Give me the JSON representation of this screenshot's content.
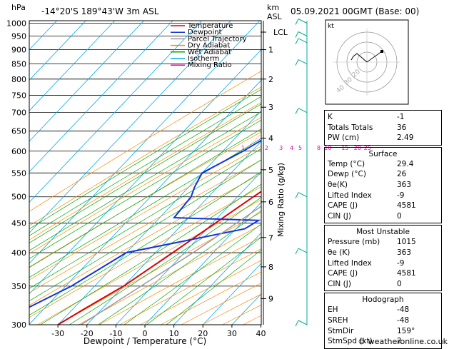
{
  "header": {
    "hpa_label": "hPa",
    "location": "-14°20'S  189°43'W  3m  ASL",
    "km_label": "km",
    "asl_label": "ASL",
    "datetime": "05.09.2021  00GMT  (Base: 00)"
  },
  "chart_data": {
    "type": "line",
    "title": "",
    "xlabel": "Dewpoint / Temperature (°C)",
    "ylabel": "hPa",
    "y_scale": "log",
    "ylim": [
      1010,
      300
    ],
    "xlim": [
      -40,
      40
    ],
    "x_ticks": [
      "-30",
      "-20",
      "-10",
      "0",
      "10",
      "20",
      "30",
      "40"
    ],
    "pressure_levels": [
      "300",
      "350",
      "400",
      "450",
      "500",
      "550",
      "600",
      "650",
      "700",
      "750",
      "800",
      "850",
      "900",
      "950",
      "1000"
    ],
    "km_ticks": [
      {
        "label": "9",
        "p": 333
      },
      {
        "label": "8",
        "p": 378
      },
      {
        "label": "7",
        "p": 425
      },
      {
        "label": "6",
        "p": 490
      },
      {
        "label": "5",
        "p": 557
      },
      {
        "label": "4",
        "p": 632
      },
      {
        "label": "3",
        "p": 715
      },
      {
        "label": "2",
        "p": 800
      },
      {
        "label": "1",
        "p": 900
      },
      {
        "label": "LCL",
        "p": 965
      }
    ],
    "right_axis_label": "Mixing Ratio (g/kg)",
    "mixing_ratio_labels": [
      "1",
      "2",
      "3",
      "4",
      "5",
      "8",
      "10",
      "15",
      "20",
      "25"
    ],
    "legend": [
      {
        "name": "Temperature",
        "color": "#dd0000"
      },
      {
        "name": "Dewpoint",
        "color": "#1133dd"
      },
      {
        "name": "Parcel Trajectory",
        "color": "#999999"
      },
      {
        "name": "Dry Adiabat",
        "color": "#ff8800"
      },
      {
        "name": "Wet Adiabat",
        "color": "#00aa00"
      },
      {
        "name": "Isotherm",
        "color": "#00aaee"
      },
      {
        "name": "Mixing Ratio",
        "color": "#ee00aa"
      }
    ],
    "series": [
      {
        "name": "Temperature",
        "points": [
          {
            "p": 1000,
            "t": 29.4
          },
          {
            "p": 975,
            "t": 26
          },
          {
            "p": 950,
            "t": 24
          },
          {
            "p": 925,
            "t": 23
          },
          {
            "p": 900,
            "t": 21.5
          },
          {
            "p": 850,
            "t": 19
          },
          {
            "p": 800,
            "t": 17.5
          },
          {
            "p": 780,
            "t": 17
          },
          {
            "p": 750,
            "t": 13
          },
          {
            "p": 700,
            "t": 10.5
          },
          {
            "p": 650,
            "t": 7
          },
          {
            "p": 600,
            "t": 4
          },
          {
            "p": 550,
            "t": 0
          },
          {
            "p": 500,
            "t": -4.5
          },
          {
            "p": 450,
            "t": -9
          },
          {
            "p": 400,
            "t": -14
          },
          {
            "p": 350,
            "t": -20
          },
          {
            "p": 320,
            "t": -26
          },
          {
            "p": 300,
            "t": -30
          }
        ]
      },
      {
        "name": "Dewpoint",
        "points": [
          {
            "p": 1000,
            "t": 26
          },
          {
            "p": 950,
            "t": 23.5
          },
          {
            "p": 925,
            "t": 22
          },
          {
            "p": 900,
            "t": 19
          },
          {
            "p": 850,
            "t": 17
          },
          {
            "p": 800,
            "t": 13
          },
          {
            "p": 795,
            "t": -2
          },
          {
            "p": 750,
            "t": -4
          },
          {
            "p": 720,
            "t": -8
          },
          {
            "p": 700,
            "t": -12
          },
          {
            "p": 650,
            "t": -18
          },
          {
            "p": 600,
            "t": -23
          },
          {
            "p": 550,
            "t": -30
          },
          {
            "p": 520,
            "t": -28
          },
          {
            "p": 500,
            "t": -26
          },
          {
            "p": 460,
            "t": -25
          },
          {
            "p": 455,
            "t": 5
          },
          {
            "p": 440,
            "t": 3
          },
          {
            "p": 400,
            "t": -30
          },
          {
            "p": 350,
            "t": -38
          },
          {
            "p": 300,
            "t": -52
          }
        ]
      },
      {
        "name": "Parcel Trajectory",
        "points": [
          {
            "p": 1000,
            "t": 29.4
          },
          {
            "p": 965,
            "t": 26
          },
          {
            "p": 900,
            "t": 23.5
          },
          {
            "p": 800,
            "t": 20
          },
          {
            "p": 700,
            "t": 16
          },
          {
            "p": 600,
            "t": 10
          },
          {
            "p": 500,
            "t": 3
          },
          {
            "p": 400,
            "t": -7
          },
          {
            "p": 350,
            "t": -14
          },
          {
            "p": 300,
            "t": -22
          }
        ]
      }
    ],
    "wind_barbs_hpa": [
      1000,
      950,
      925,
      850,
      700,
      500,
      400,
      300
    ]
  },
  "hodograph": {
    "unit_label": "kt",
    "ring_labels": [
      "40",
      "30",
      "20"
    ]
  },
  "indices": [
    {
      "label": "K",
      "value": "-1"
    },
    {
      "label": "Totals Totals",
      "value": "36"
    },
    {
      "label": "PW (cm)",
      "value": "2.49"
    }
  ],
  "surface": {
    "title": "Surface",
    "rows": [
      {
        "label": "Temp (°C)",
        "value": "29.4"
      },
      {
        "label": "Dewp (°C)",
        "value": "26"
      },
      {
        "label": "θe(K)",
        "value": "363"
      },
      {
        "label": "Lifted Index",
        "value": "-9"
      },
      {
        "label": "CAPE (J)",
        "value": "4581"
      },
      {
        "label": "CIN (J)",
        "value": "0"
      }
    ]
  },
  "most_unstable": {
    "title": "Most Unstable",
    "rows": [
      {
        "label": "Pressure (mb)",
        "value": "1015"
      },
      {
        "label": "θe (K)",
        "value": "363"
      },
      {
        "label": "Lifted Index",
        "value": "-9"
      },
      {
        "label": "CAPE (J)",
        "value": "4581"
      },
      {
        "label": "CIN (J)",
        "value": "0"
      }
    ]
  },
  "hodograph_table": {
    "title": "Hodograph",
    "rows": [
      {
        "label": "EH",
        "value": "-48"
      },
      {
        "label": "SREH",
        "value": "-48"
      },
      {
        "label": "StmDir",
        "value": "159°"
      },
      {
        "label": "StmSpd (kt)",
        "value": "2"
      }
    ]
  },
  "copyright": "© weatheronline.co.uk"
}
